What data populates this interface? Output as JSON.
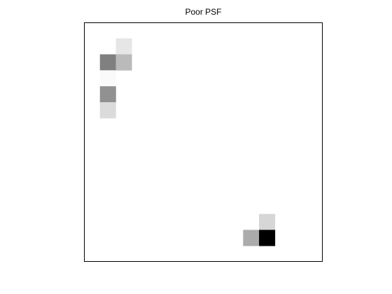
{
  "chart_data": {
    "type": "heatmap",
    "title": "Poor PSF",
    "xlabel": "",
    "ylabel": "",
    "grid": false,
    "colormap": "gray-reversed",
    "colors": {
      "background": "#ffffff",
      "axes_frame": "#000000",
      "low": "#ffffff",
      "high": "#000000"
    },
    "xlim": [
      0.5,
      15.5
    ],
    "ylim": [
      0.5,
      15.5
    ],
    "y_direction": "reverse",
    "show_ticks": false,
    "nonzero_cells": [
      {
        "col": 3,
        "row": 2,
        "intensity": 0.1
      },
      {
        "col": 2,
        "row": 3,
        "intensity": 0.5
      },
      {
        "col": 3,
        "row": 3,
        "intensity": 0.27
      },
      {
        "col": 2,
        "row": 4,
        "intensity": 0.02
      },
      {
        "col": 2,
        "row": 5,
        "intensity": 0.43
      },
      {
        "col": 2,
        "row": 6,
        "intensity": 0.14
      },
      {
        "col": 12,
        "row": 13,
        "intensity": 0.16
      },
      {
        "col": 11,
        "row": 14,
        "intensity": 0.33
      },
      {
        "col": 12,
        "row": 14,
        "intensity": 1.0
      }
    ]
  }
}
